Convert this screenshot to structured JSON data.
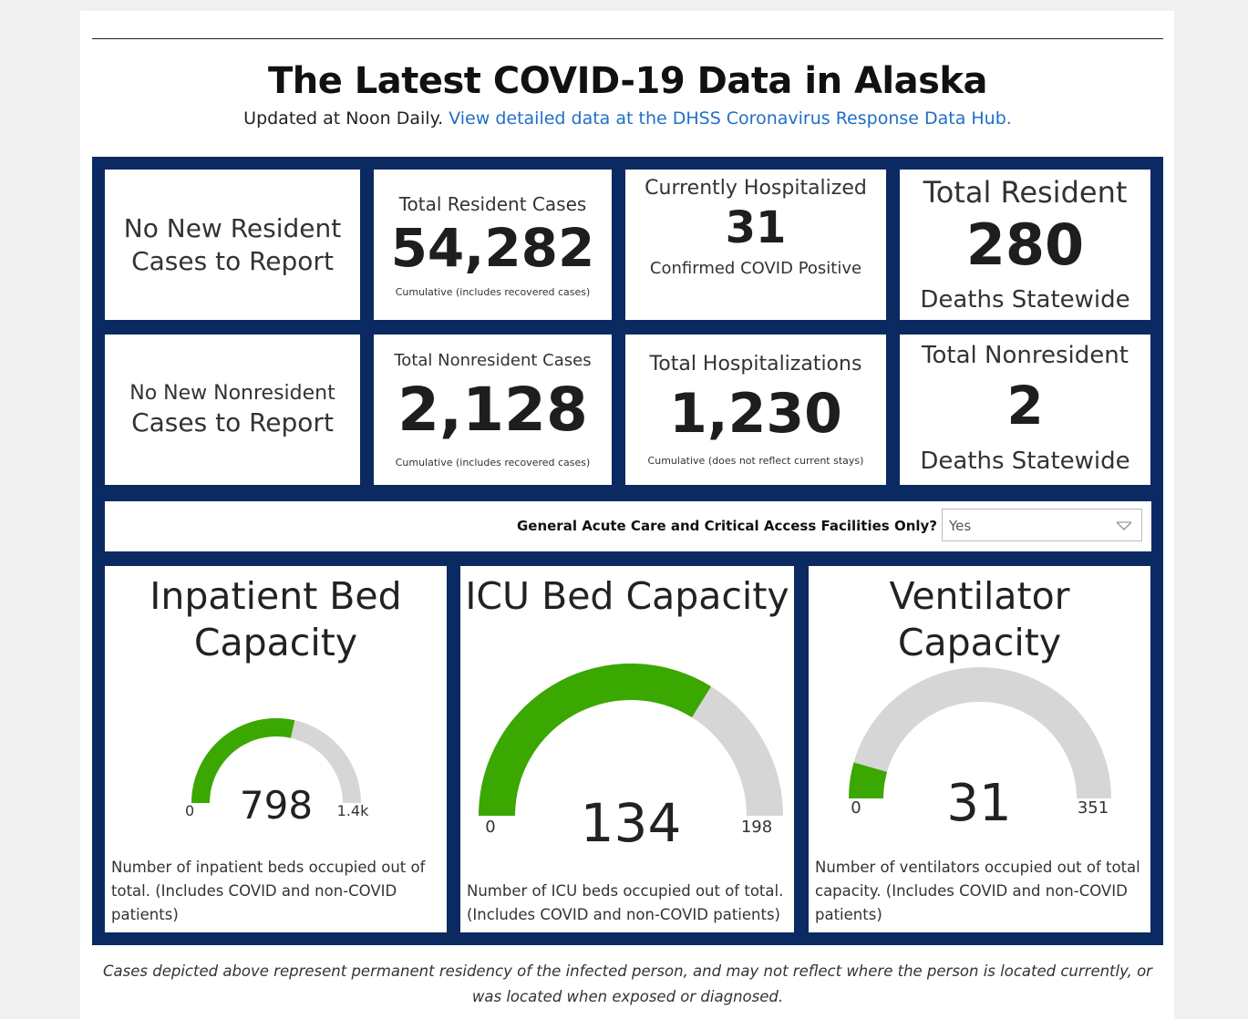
{
  "header": {
    "title": "The Latest COVID-19 Data in Alaska",
    "subtitle_prefix": "Updated at Noon Daily.",
    "subtitle_link": "View detailed data at the DHSS Coronavirus Response Data Hub."
  },
  "cards": {
    "new_resident": {
      "line1": "No New Resident",
      "line2": "Cases to Report"
    },
    "total_resident_cases": {
      "label": "Total Resident Cases",
      "value": "54,282",
      "note": "Cumulative (includes recovered cases)"
    },
    "currently_hospitalized": {
      "label": "Currently Hospitalized",
      "value": "31",
      "note": "Confirmed COVID Positive"
    },
    "resident_deaths": {
      "label": "Total Resident",
      "value": "280",
      "note": "Deaths Statewide"
    },
    "new_nonresident": {
      "line1": "No New Nonresident",
      "line2": "Cases to Report"
    },
    "total_nonresident_cases": {
      "label": "Total Nonresident Cases",
      "value": "2,128",
      "note": "Cumulative (includes recovered cases)"
    },
    "total_hospitalizations": {
      "label": "Total Hospitalizations",
      "value": "1,230",
      "note": "Cumulative (does not reflect current stays)"
    },
    "nonresident_deaths": {
      "label": "Total Nonresident",
      "value": "2",
      "note": "Deaths Statewide"
    }
  },
  "filter": {
    "label": "General Acute Care and Critical Access Facilities Only?",
    "selected": "Yes"
  },
  "gauges": {
    "inpatient": {
      "title1": "Inpatient Bed",
      "title2": "Capacity",
      "value": 798,
      "value_label": "798",
      "min_label": "0",
      "max_label": "1.4k",
      "max": 1400,
      "description": "Number of inpatient beds occupied out of total. (Includes COVID and non-COVID patients)"
    },
    "icu": {
      "title1": "ICU Bed Capacity",
      "value": 134,
      "value_label": "134",
      "min_label": "0",
      "max_label": "198",
      "max": 198,
      "description": "Number of ICU beds occupied out of total. (Includes COVID and non-COVID patients)"
    },
    "ventilator": {
      "title1": "Ventilator Capacity",
      "value": 31,
      "value_label": "31",
      "min_label": "0",
      "max_label": "351",
      "max": 351,
      "description": "Number of ventilators occupied out of total capacity. (Includes COVID and non-COVID patients)"
    }
  },
  "colors": {
    "navy": "#0b2a62",
    "green": "#3aa800",
    "track": "#d6d6d6",
    "link": "#1f6fc5"
  },
  "footnote": "Cases depicted above represent permanent residency of the infected person, and may not reflect where the person is located currently, or was located when exposed or diagnosed."
}
